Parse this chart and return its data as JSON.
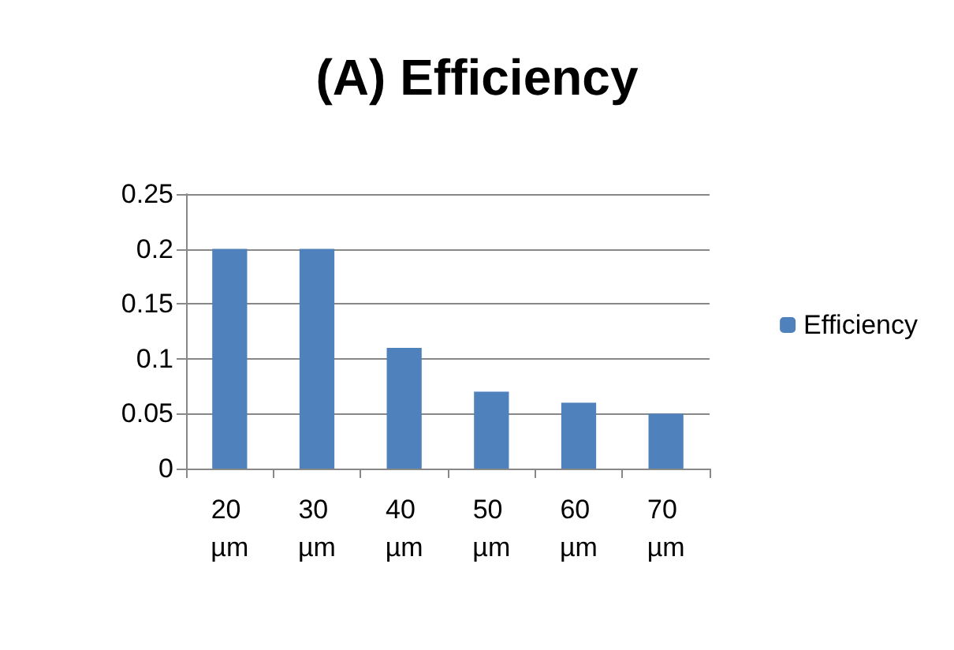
{
  "chart_data": {
    "type": "bar",
    "title": "(A) Efficiency",
    "categories": [
      "20 µm",
      "30 µm",
      "40 µm",
      "50 µm",
      "60 µm",
      "70 µm"
    ],
    "series": [
      {
        "name": "Efficiency",
        "color": "#4f81bd",
        "values": [
          0.2,
          0.2,
          0.11,
          0.07,
          0.06,
          0.05
        ]
      }
    ],
    "ylim": [
      0,
      0.25
    ],
    "yticks": [
      0,
      0.05,
      0.1,
      0.15,
      0.2,
      0.25
    ],
    "grid": "y",
    "legend": "right"
  }
}
